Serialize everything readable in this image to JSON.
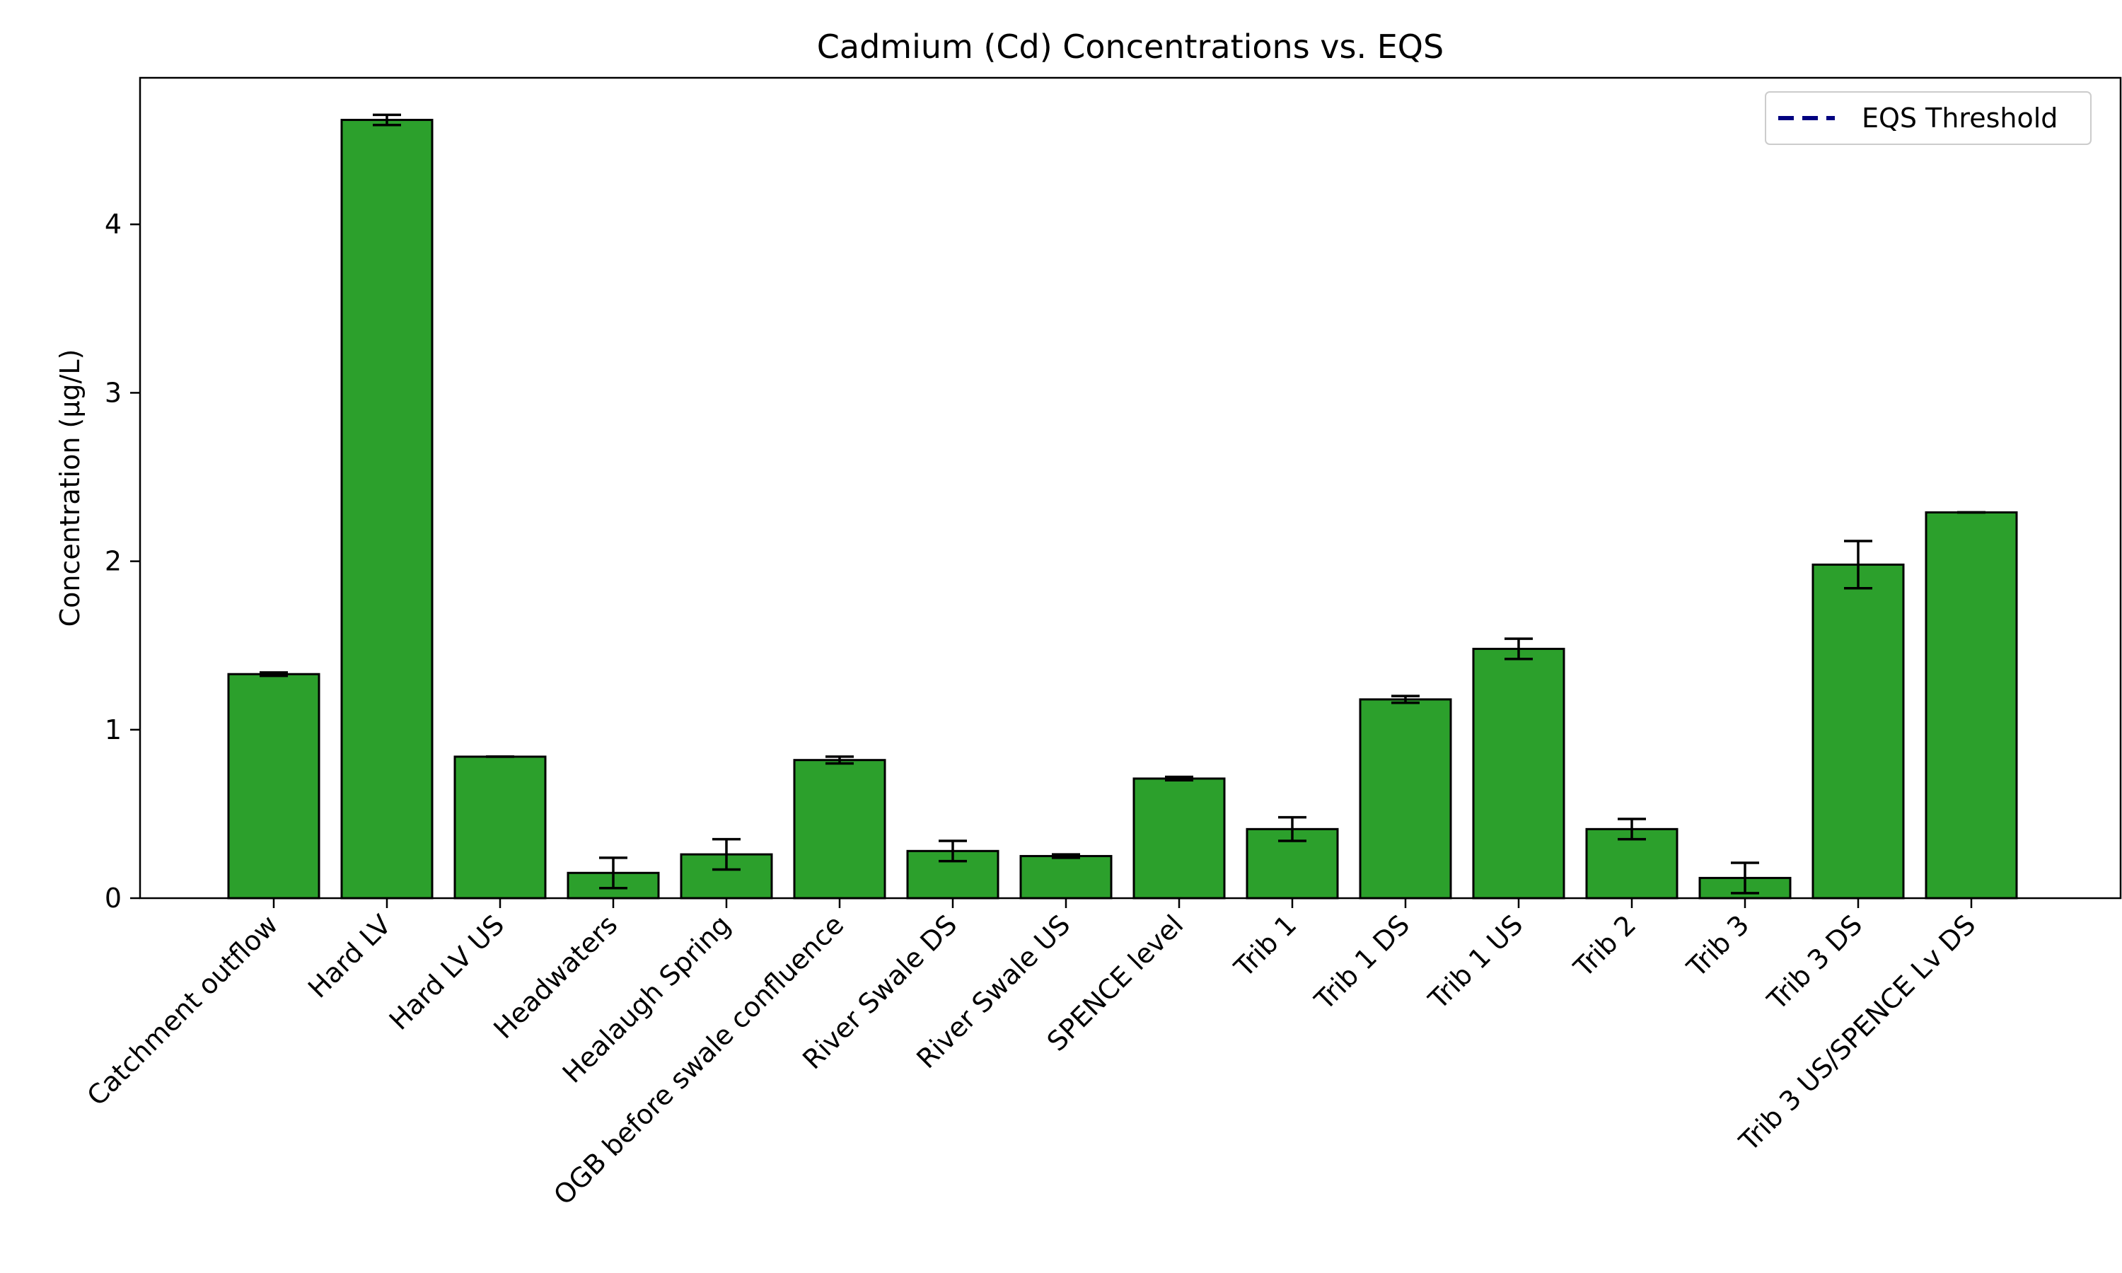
{
  "chart_data": {
    "type": "bar",
    "title": "Cadmium (Cd) Concentrations vs. EQS",
    "xlabel": "",
    "ylabel": "Concentration (µg/L)",
    "ylim": [
      0,
      4.87
    ],
    "yticks": [
      0,
      1,
      2,
      3,
      4
    ],
    "grid": false,
    "legend_position": "top-right",
    "bar_color": "#2ca02c",
    "categories": [
      "Catchment outflow",
      "Hard LV",
      "Hard LV US",
      "Headwaters",
      "Healaugh Spring",
      "OGB before swale confluence",
      "River Swale DS",
      "River Swale US",
      "SPENCE level",
      "Trib 1",
      "Trib 1 DS",
      "Trib 1 US",
      "Trib 2",
      "Trib 3",
      "Trib 3 DS",
      "Trib 3 US/SPENCE Lv DS"
    ],
    "values": [
      1.33,
      4.62,
      0.84,
      0.15,
      0.26,
      0.82,
      0.28,
      0.25,
      0.71,
      0.41,
      1.18,
      1.48,
      0.41,
      0.12,
      1.98,
      2.29
    ],
    "errors": [
      0.01,
      0.03,
      0.0,
      0.09,
      0.09,
      0.02,
      0.06,
      0.01,
      0.01,
      0.07,
      0.02,
      0.06,
      0.06,
      0.09,
      0.14,
      0.0
    ],
    "legend": [
      {
        "label": "EQS Threshold",
        "style": "dashed",
        "color": "#000080"
      }
    ]
  }
}
